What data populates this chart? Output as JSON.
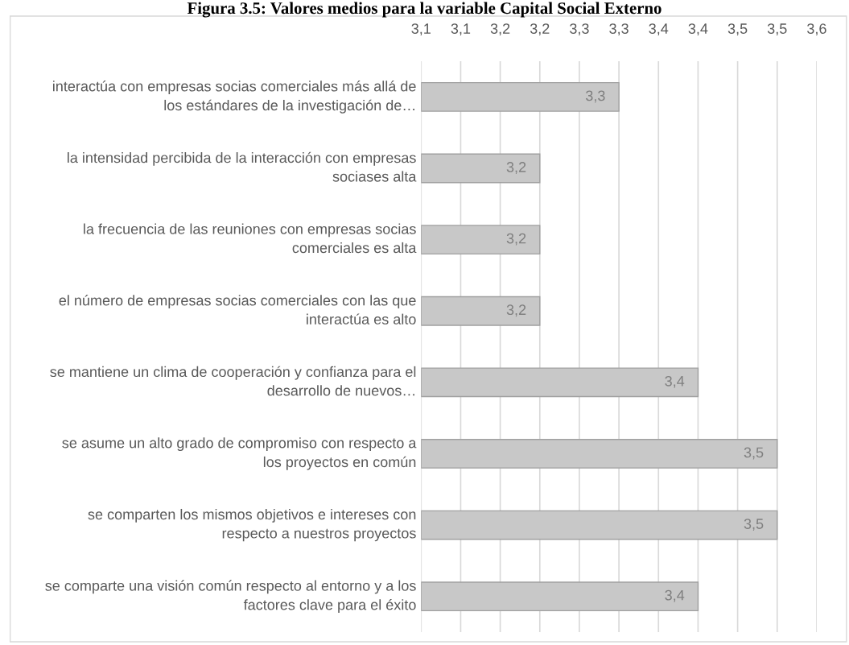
{
  "chart_data": {
    "type": "bar",
    "orientation": "horizontal",
    "title": "Figura 3.5: Valores medios para la variable Capital Social Externo",
    "categories": [
      "interactúa con empresas socias comerciales más allá de los estándares de la investigación de…",
      "la intensidad percibida de la interacción con empresas sociases alta",
      "la frecuencia de las reuniones con empresas socias comerciales es alta",
      "el número de empresas socias comerciales con las que interactúa es alto",
      "se mantiene un clima de cooperación y confianza para el desarrollo de nuevos…",
      "se asume un alto grado de compromiso con respecto a los proyectos en común",
      "se comparten los mismos objetivos e intereses con respecto a nuestros proyectos",
      "se comparte una visión común respecto al entorno y a los factores clave para el éxito"
    ],
    "values": [
      3.35,
      3.25,
      3.25,
      3.25,
      3.45,
      3.55,
      3.55,
      3.45
    ],
    "value_labels": [
      "3,3",
      "3,2",
      "3,2",
      "3,2",
      "3,4",
      "3,5",
      "3,5",
      "3,4"
    ],
    "color": "#c8c8c8",
    "xlim": [
      3.1,
      3.6
    ],
    "xticks": [
      {
        "value": 3.1,
        "label": "3,1"
      },
      {
        "value": 3.15,
        "label": "3,1"
      },
      {
        "value": 3.2,
        "label": "3,2"
      },
      {
        "value": 3.25,
        "label": "3,2"
      },
      {
        "value": 3.3,
        "label": "3,3"
      },
      {
        "value": 3.35,
        "label": "3,3"
      },
      {
        "value": 3.4,
        "label": "3,4"
      },
      {
        "value": 3.45,
        "label": "3,4"
      },
      {
        "value": 3.5,
        "label": "3,5"
      },
      {
        "value": 3.55,
        "label": "3,5"
      },
      {
        "value": 3.6,
        "label": "3,6"
      }
    ],
    "grid": "x",
    "legend": false
  }
}
